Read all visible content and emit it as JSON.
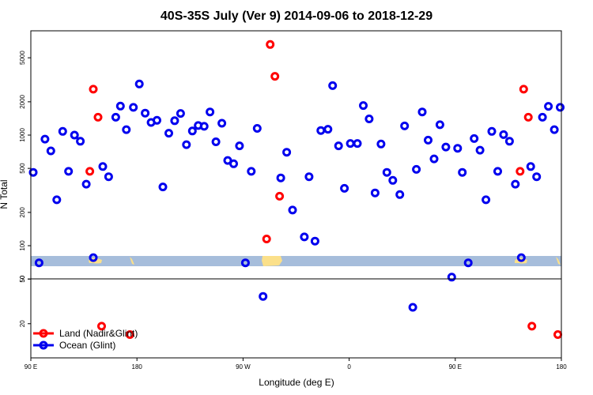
{
  "chart_data": {
    "type": "scatter",
    "title": "40S-35S July (Ver 9)   2014-09-06 to 2018-12-29",
    "xlabel": "Longitude (deg E)",
    "ylabel": "N Total",
    "x_ticks": [
      {
        "value": 90,
        "label": "90 E"
      },
      {
        "value": 180,
        "label": "180"
      },
      {
        "value": 270,
        "label": "90 W"
      },
      {
        "value": 360,
        "label": "0"
      },
      {
        "value": 450,
        "label": "90 E"
      },
      {
        "value": 540,
        "label": "180"
      }
    ],
    "xlim": [
      90,
      540
    ],
    "upper_panel": {
      "scale": "log",
      "ylim": [
        50,
        10000
      ],
      "y_ticks": [
        "50",
        "100",
        "200",
        "500",
        "1000",
        "2000",
        "5000"
      ]
    },
    "lower_panel": {
      "scale": "log",
      "y_ticks": [
        "20",
        "50"
      ]
    },
    "legend": {
      "position": "bottom-left",
      "entries": [
        {
          "label": "Land (Nadir&Glint)",
          "color": "#ff0000"
        },
        {
          "label": "Ocean (Glint)",
          "color": "#0000ee"
        }
      ]
    },
    "colors": {
      "land": "#ff0000",
      "ocean": "#0000ee",
      "map_ocean": "#a6bddb",
      "map_land": "#fbe08a"
    },
    "series": [
      {
        "name": "Ocean (Glint)",
        "color": "#0000ee",
        "points": [
          [
            92,
            460
          ],
          [
            97,
            70
          ],
          [
            102,
            920
          ],
          [
            107,
            720
          ],
          [
            112,
            260
          ],
          [
            117,
            1080
          ],
          [
            122,
            470
          ],
          [
            127,
            1000
          ],
          [
            132,
            880
          ],
          [
            137,
            360
          ],
          [
            143,
            78
          ],
          [
            151,
            520
          ],
          [
            156,
            420
          ],
          [
            162,
            1450
          ],
          [
            166,
            1830
          ],
          [
            171,
            1120
          ],
          [
            177,
            1780
          ],
          [
            182,
            2900
          ],
          [
            187,
            1580
          ],
          [
            192,
            1300
          ],
          [
            197,
            1360
          ],
          [
            202,
            340
          ],
          [
            207,
            1040
          ],
          [
            212,
            1350
          ],
          [
            217,
            1570
          ],
          [
            222,
            820
          ],
          [
            227,
            1090
          ],
          [
            232,
            1220
          ],
          [
            237,
            1200
          ],
          [
            242,
            1620
          ],
          [
            247,
            870
          ],
          [
            252,
            1280
          ],
          [
            257,
            590
          ],
          [
            262,
            550
          ],
          [
            267,
            800
          ],
          [
            272,
            70
          ],
          [
            277,
            470
          ],
          [
            282,
            1150
          ],
          [
            287,
            35
          ],
          [
            302,
            410
          ],
          [
            307,
            700
          ],
          [
            312,
            210
          ],
          [
            322,
            120
          ],
          [
            326,
            420
          ],
          [
            331,
            110
          ],
          [
            336,
            1100
          ],
          [
            342,
            1130
          ],
          [
            346,
            2800
          ],
          [
            351,
            800
          ],
          [
            356,
            330
          ],
          [
            361,
            840
          ],
          [
            367,
            840
          ],
          [
            372,
            1850
          ],
          [
            377,
            1400
          ],
          [
            382,
            300
          ],
          [
            387,
            830
          ],
          [
            392,
            460
          ],
          [
            397,
            390
          ],
          [
            403,
            290
          ],
          [
            407,
            1210
          ],
          [
            414,
            28
          ],
          [
            417,
            490
          ],
          [
            422,
            1620
          ],
          [
            427,
            900
          ],
          [
            432,
            610
          ],
          [
            437,
            1240
          ],
          [
            442,
            780
          ],
          [
            447,
            52
          ],
          [
            452,
            760
          ],
          [
            456,
            460
          ],
          [
            461,
            70
          ],
          [
            466,
            930
          ],
          [
            471,
            730
          ],
          [
            476,
            260
          ],
          [
            481,
            1080
          ],
          [
            486,
            470
          ],
          [
            491,
            1010
          ],
          [
            496,
            880
          ],
          [
            501,
            360
          ],
          [
            506,
            78
          ],
          [
            514,
            520
          ],
          [
            519,
            420
          ],
          [
            524,
            1450
          ],
          [
            529,
            1820
          ],
          [
            534,
            1120
          ],
          [
            539,
            1780
          ]
        ]
      },
      {
        "name": "Land (Nadir&Glint)",
        "color": "#ff0000",
        "points": [
          [
            140,
            470
          ],
          [
            143,
            2600
          ],
          [
            147,
            1450
          ],
          [
            150,
            19
          ],
          [
            174,
            16
          ],
          [
            290,
            115
          ],
          [
            293,
            6600
          ],
          [
            297,
            3400
          ],
          [
            301,
            280
          ],
          [
            505,
            470
          ],
          [
            508,
            2600
          ],
          [
            512,
            1450
          ],
          [
            515,
            19
          ],
          [
            537,
            16
          ]
        ]
      }
    ]
  }
}
